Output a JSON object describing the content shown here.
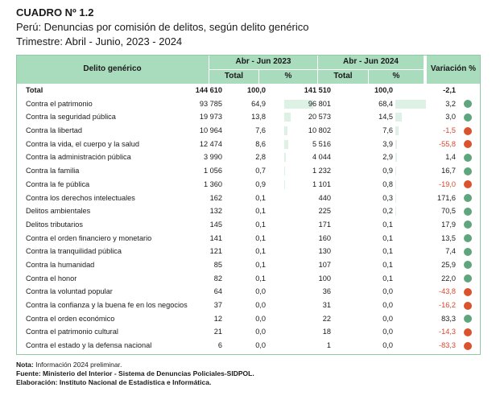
{
  "header": {
    "title": "CUADRO Nº 1.2",
    "subtitle": "Perú: Denuncias por comisión de delitos, según delito genérico",
    "period": "Trimestre: Abril - Junio, 2023 - 2024"
  },
  "table": {
    "col_label": "Delito genérico",
    "group1": "Abr - Jun 2023",
    "group2": "Abr - Jun 2024",
    "variation": "Variación %",
    "sub_total": "Total",
    "sub_pct": "%",
    "colors": {
      "header_bg": "#a9dbbd",
      "bar": "#ddf1e5",
      "dot_up": "#5fa57d",
      "dot_down": "#d9532f",
      "neg_text": "#d9462d"
    },
    "rows": [
      {
        "label": "Total",
        "t1": "144 610",
        "p1": "100,0",
        "t2": "141 510",
        "p2": "100,0",
        "var": "-2,1",
        "bar1": 0,
        "bar2": 0,
        "dir": "none"
      },
      {
        "label": "Contra el patrimonio",
        "t1": "93 785",
        "p1": "64,9",
        "t2": "96 801",
        "p2": "68,4",
        "var": "3,2",
        "bar1": 64.9,
        "bar2": 68.4,
        "dir": "up"
      },
      {
        "label": "Contra la seguridad pública",
        "t1": "19 973",
        "p1": "13,8",
        "t2": "20 573",
        "p2": "14,5",
        "var": "3,0",
        "bar1": 13.8,
        "bar2": 14.5,
        "dir": "up"
      },
      {
        "label": "Contra la libertad",
        "t1": "10 964",
        "p1": "7,6",
        "t2": "10 802",
        "p2": "7,6",
        "var": "-1,5",
        "bar1": 7.6,
        "bar2": 7.6,
        "dir": "down"
      },
      {
        "label": "Contra la vida, el cuerpo y la salud",
        "t1": "12 474",
        "p1": "8,6",
        "t2": "5 516",
        "p2": "3,9",
        "var": "-55,8",
        "bar1": 8.6,
        "bar2": 3.9,
        "dir": "down"
      },
      {
        "label": "Contra la administración pública",
        "t1": "3 990",
        "p1": "2,8",
        "t2": "4 044",
        "p2": "2,9",
        "var": "1,4",
        "bar1": 2.8,
        "bar2": 2.9,
        "dir": "up"
      },
      {
        "label": "Contra la familia",
        "t1": "1 056",
        "p1": "0,7",
        "t2": "1 232",
        "p2": "0,9",
        "var": "16,7",
        "bar1": 0.7,
        "bar2": 0.9,
        "dir": "up"
      },
      {
        "label": "Contra la fe pública",
        "t1": "1 360",
        "p1": "0,9",
        "t2": "1 101",
        "p2": "0,8",
        "var": "-19,0",
        "bar1": 0.9,
        "bar2": 0.8,
        "dir": "down"
      },
      {
        "label": "Contra los derechos intelectuales",
        "t1": "162",
        "p1": "0,1",
        "t2": "440",
        "p2": "0,3",
        "var": "171,6",
        "bar1": 0.1,
        "bar2": 0.3,
        "dir": "up"
      },
      {
        "label": "Delitos ambientales",
        "t1": "132",
        "p1": "0,1",
        "t2": "225",
        "p2": "0,2",
        "var": "70,5",
        "bar1": 0.1,
        "bar2": 0.2,
        "dir": "up"
      },
      {
        "label": "Delitos tributarios",
        "t1": "145",
        "p1": "0,1",
        "t2": "171",
        "p2": "0,1",
        "var": "17,9",
        "bar1": 0.1,
        "bar2": 0.1,
        "dir": "up"
      },
      {
        "label": "Contra el orden financiero y monetario",
        "t1": "141",
        "p1": "0,1",
        "t2": "160",
        "p2": "0,1",
        "var": "13,5",
        "bar1": 0.1,
        "bar2": 0.1,
        "dir": "up"
      },
      {
        "label": "Contra la tranquilidad pública",
        "t1": "121",
        "p1": "0,1",
        "t2": "130",
        "p2": "0,1",
        "var": "7,4",
        "bar1": 0.1,
        "bar2": 0.1,
        "dir": "up"
      },
      {
        "label": "Contra la humanidad",
        "t1": "85",
        "p1": "0,1",
        "t2": "107",
        "p2": "0,1",
        "var": "25,9",
        "bar1": 0.1,
        "bar2": 0.1,
        "dir": "up"
      },
      {
        "label": "Contra el honor",
        "t1": "82",
        "p1": "0,1",
        "t2": "100",
        "p2": "0,1",
        "var": "22,0",
        "bar1": 0.1,
        "bar2": 0.1,
        "dir": "up"
      },
      {
        "label": "Contra la voluntad popular",
        "t1": "64",
        "p1": "0,0",
        "t2": "36",
        "p2": "0,0",
        "var": "-43,8",
        "bar1": 0,
        "bar2": 0,
        "dir": "down"
      },
      {
        "label": "Contra la confianza y la buena fe en los negocios",
        "t1": "37",
        "p1": "0,0",
        "t2": "31",
        "p2": "0,0",
        "var": "-16,2",
        "bar1": 0,
        "bar2": 0,
        "dir": "down"
      },
      {
        "label": "Contra el orden económico",
        "t1": "12",
        "p1": "0,0",
        "t2": "22",
        "p2": "0,0",
        "var": "83,3",
        "bar1": 0,
        "bar2": 0,
        "dir": "up"
      },
      {
        "label": "Contra el patrimonio cultural",
        "t1": "21",
        "p1": "0,0",
        "t2": "18",
        "p2": "0,0",
        "var": "-14,3",
        "bar1": 0,
        "bar2": 0,
        "dir": "down"
      },
      {
        "label": "Contra el estado y la defensa nacional",
        "t1": "6",
        "p1": "0,0",
        "t2": "1",
        "p2": "0,0",
        "var": "-83,3",
        "bar1": 0,
        "bar2": 0,
        "dir": "down"
      }
    ]
  },
  "footer": {
    "note_label": "Nota:",
    "note": " Información 2024 preliminar.",
    "source": "Fuente: Ministerio del Interior - Sistema de Denuncias Policiales-SIDPOL.",
    "elaboration": "Elaboración: Instituto Nacional de Estadística e Informática."
  }
}
